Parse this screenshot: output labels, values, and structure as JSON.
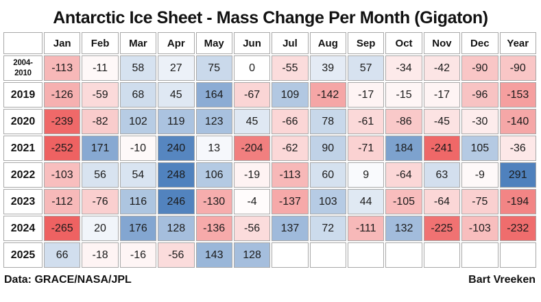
{
  "title": "Antarctic Ice Sheet - Mass Change Per Month (Gigaton)",
  "footer": {
    "source": "Data: GRACE/NASA/JPL",
    "author": "Bart Vreeken"
  },
  "chart_data": {
    "type": "heatmap",
    "title": "Antarctic Ice Sheet - Mass Change Per Month (Gigaton)",
    "value_unit": "Gigaton",
    "corner_label": "",
    "columns": [
      "Jan",
      "Feb",
      "Mar",
      "Apr",
      "May",
      "Jun",
      "Jul",
      "Aug",
      "Sep",
      "Oct",
      "Nov",
      "Dec",
      "Year"
    ],
    "rows": [
      {
        "label": "2004-2010",
        "label_lines": [
          "2004-",
          "2010"
        ],
        "values": [
          -113,
          -11,
          58,
          27,
          75,
          0,
          -55,
          39,
          57,
          -34,
          -42,
          -90,
          -90
        ]
      },
      {
        "label": "2019",
        "values": [
          -126,
          -59,
          68,
          45,
          164,
          -67,
          109,
          -142,
          -17,
          -15,
          -17,
          -96,
          -153
        ]
      },
      {
        "label": "2020",
        "values": [
          -239,
          -82,
          102,
          119,
          123,
          45,
          -66,
          78,
          -61,
          -86,
          -45,
          -30,
          -140
        ]
      },
      {
        "label": "2021",
        "values": [
          -252,
          171,
          -10,
          240,
          13,
          -204,
          -62,
          90,
          -71,
          184,
          -241,
          105,
          -36
        ]
      },
      {
        "label": "2022",
        "values": [
          -103,
          56,
          54,
          248,
          106,
          -19,
          -113,
          60,
          9,
          -64,
          63,
          -9,
          291
        ]
      },
      {
        "label": "2023",
        "values": [
          -112,
          -76,
          116,
          246,
          -130,
          -4,
          -137,
          103,
          44,
          -105,
          -64,
          -75,
          -194
        ]
      },
      {
        "label": "2024",
        "values": [
          -265,
          20,
          176,
          128,
          -136,
          -56,
          137,
          72,
          -111,
          132,
          -225,
          -103,
          -232
        ]
      },
      {
        "label": "2025",
        "values": [
          66,
          -18,
          -16,
          -56,
          143,
          128,
          null,
          null,
          null,
          null,
          null,
          null,
          null
        ]
      }
    ],
    "color_scale": {
      "negative_max_color": "#ee6262",
      "positive_max_color": "#4f81bd",
      "zero_color": "#ffffff",
      "cap_abs_value": 250
    }
  }
}
